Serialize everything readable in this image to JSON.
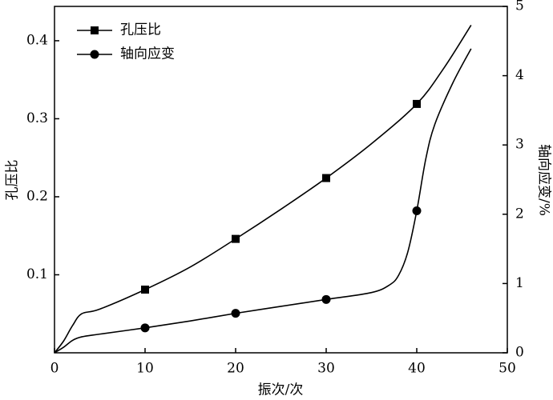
{
  "chart_data": {
    "type": "line",
    "xlabel": "振次/次",
    "ylabel": "孔压比",
    "y2label": "轴向应变/%",
    "xlim": [
      0,
      50
    ],
    "xticks": [
      0,
      10,
      20,
      30,
      40,
      50
    ],
    "ylim": [
      0,
      0.444
    ],
    "yticks": [
      0.1,
      0.2,
      0.3,
      0.4
    ],
    "y2lim": [
      0,
      5
    ],
    "y2ticks": [
      0,
      1,
      2,
      3,
      4,
      5
    ],
    "legend": "upper left",
    "series": [
      {
        "name": "孔压比",
        "color": "#000000",
        "marker": "square",
        "x": [
          0,
          1,
          2,
          3,
          5,
          10,
          15,
          20,
          25,
          30,
          35,
          40,
          43,
          46
        ],
        "values": [
          0,
          0.015,
          0.035,
          0.05,
          0.056,
          0.081,
          0.11,
          0.146,
          0.184,
          0.224,
          0.268,
          0.319,
          0.365,
          0.42
        ]
      },
      {
        "name": "轴向应变",
        "color": "#000000",
        "marker": "circle",
        "axis": "y2",
        "x": [
          0,
          1,
          2,
          3,
          5,
          10,
          15,
          20,
          25,
          30,
          35,
          37,
          38,
          39,
          40,
          41,
          42,
          44,
          46
        ],
        "values": [
          0,
          0.08,
          0.18,
          0.23,
          0.27,
          0.36,
          0.46,
          0.57,
          0.67,
          0.77,
          0.87,
          0.98,
          1.12,
          1.45,
          2.05,
          2.8,
          3.3,
          3.9,
          4.39
        ]
      }
    ]
  }
}
